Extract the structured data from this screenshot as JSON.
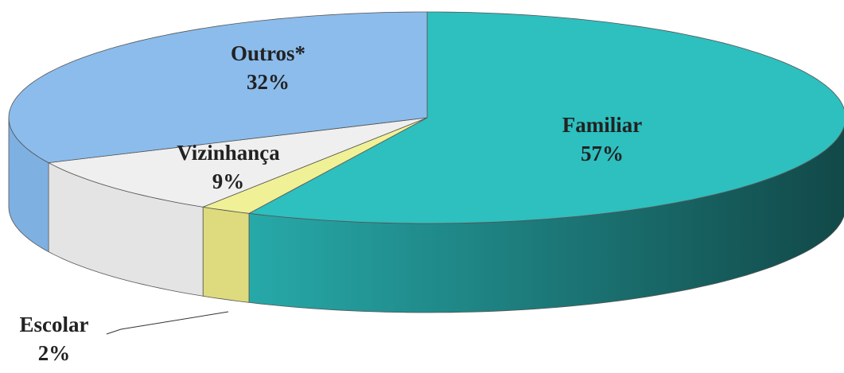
{
  "chart_data": {
    "type": "pie",
    "categories": [
      "Familiar",
      "Escolar",
      "Vizinhança",
      "Outros*"
    ],
    "values": [
      57,
      2,
      9,
      32
    ],
    "value_labels": [
      "57%",
      "2%",
      "9%",
      "32%"
    ],
    "colors": [
      "#2ebfbf",
      "#f0f096",
      "#efefef",
      "#8bbcec"
    ]
  }
}
